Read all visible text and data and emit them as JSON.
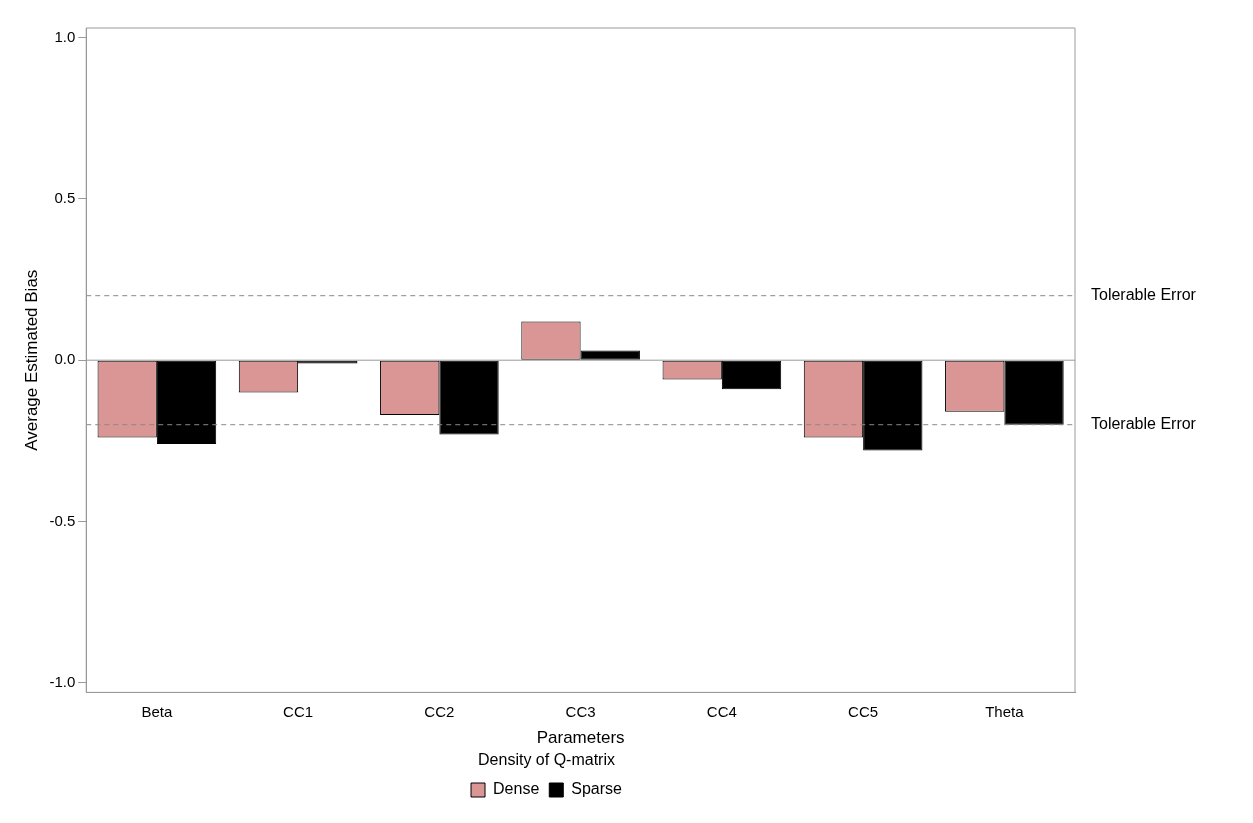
{
  "chart_data": {
    "type": "bar",
    "xlabel": "Parameters",
    "ylabel": "Average Estimated Bias",
    "legend_title": "Density of Q-matrix",
    "legend": "bottom",
    "grid": false,
    "categories": [
      "Beta",
      "CC1",
      "CC2",
      "CC3",
      "CC4",
      "CC5",
      "Theta"
    ],
    "series": [
      {
        "name": "Dense",
        "color": "#d99694",
        "values": [
          -0.24,
          -0.1,
          -0.17,
          0.12,
          -0.06,
          -0.24,
          -0.16
        ]
      },
      {
        "name": "Sparse",
        "color": "#000000",
        "values": [
          -0.26,
          -0.01,
          -0.23,
          0.03,
          -0.09,
          -0.28,
          -0.2
        ]
      }
    ],
    "ylim": [
      -1.03,
      1.03
    ],
    "yticks": [
      {
        "value": -1,
        "label": "-1.0"
      },
      {
        "value": -0.5,
        "label": "-0.5"
      },
      {
        "value": 0,
        "label": "0.0"
      },
      {
        "value": 0.5,
        "label": "0.5"
      },
      {
        "value": 1,
        "label": "1.0"
      }
    ],
    "ref_lines": [
      {
        "axis": "y",
        "value": 0.2,
        "label": "Tolerable Error",
        "color": "#888888",
        "line_style": "dashed"
      },
      {
        "axis": "y",
        "value": -0.2,
        "label": "Tolerable Error",
        "color": "#888888",
        "line_style": "dashed"
      },
      {
        "axis": "y",
        "value": 0,
        "color": "#999999",
        "line_style": "solid"
      }
    ]
  }
}
